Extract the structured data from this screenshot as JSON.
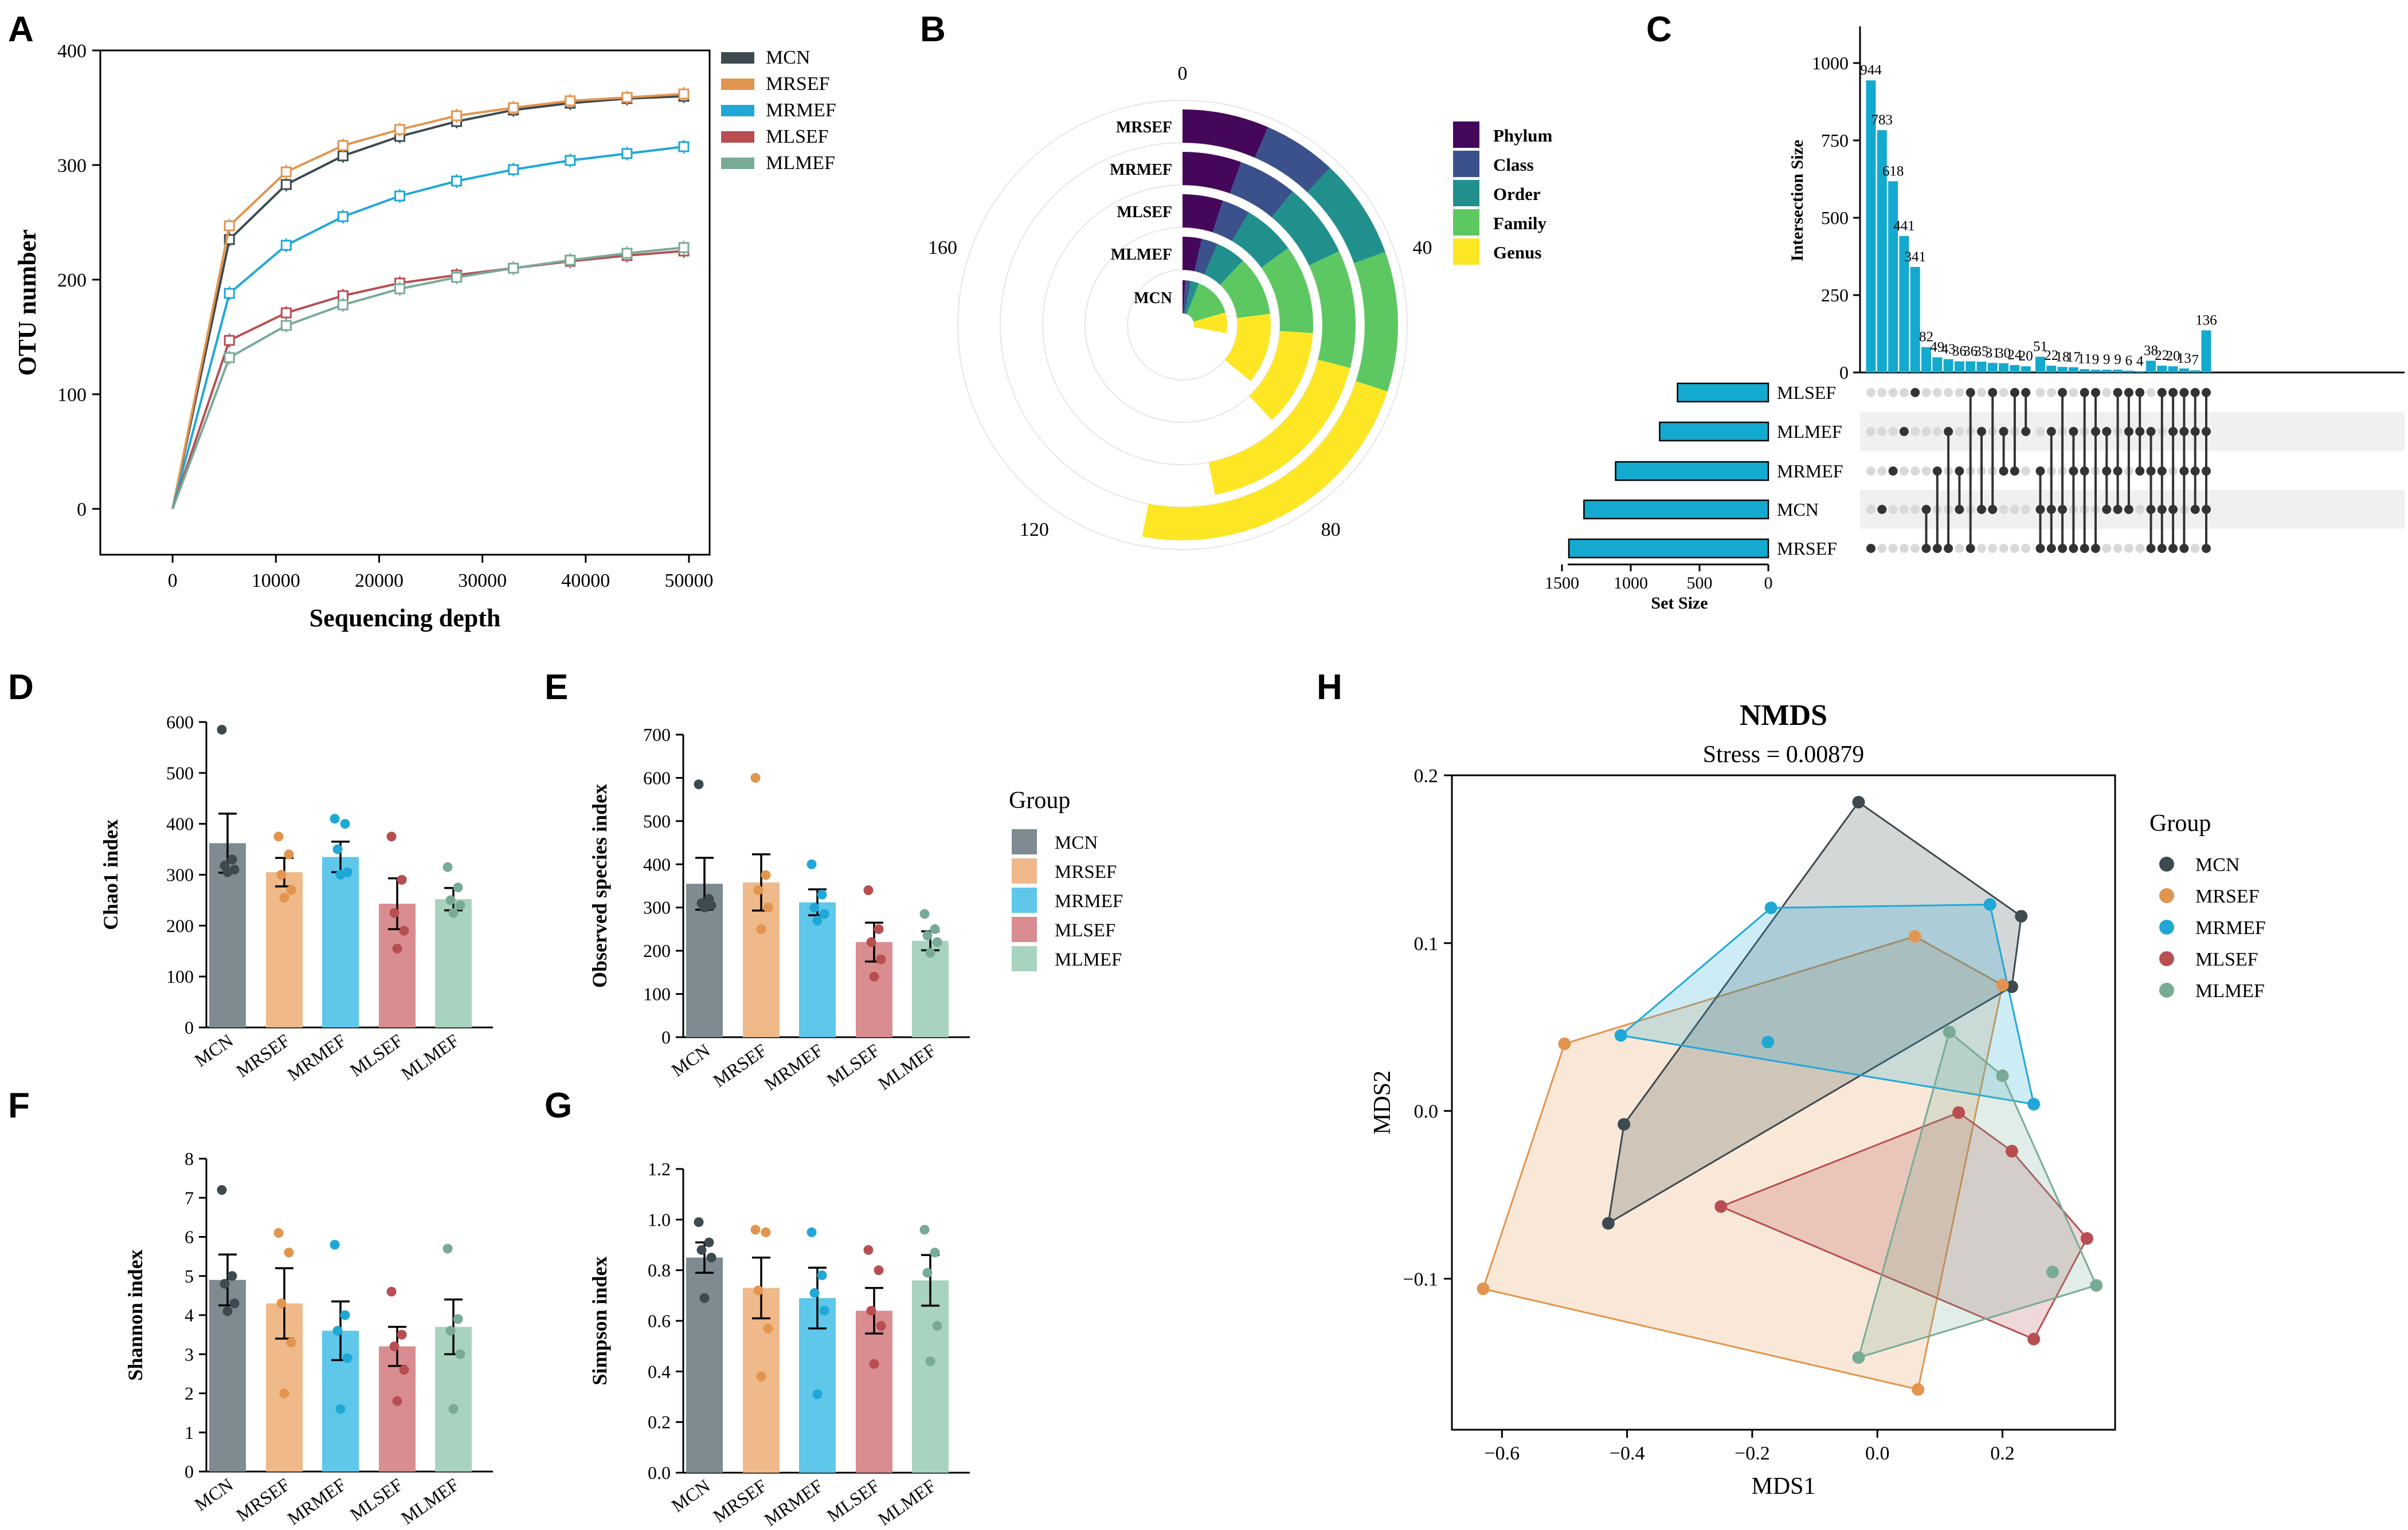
{
  "panel_letters": {
    "A": "A",
    "B": "B",
    "C": "C",
    "D": "D",
    "E": "E",
    "F": "F",
    "G": "G",
    "H": "H"
  },
  "colors": {
    "MCN": "#3d4a4f",
    "MRSEF": "#e2954e",
    "MRMEF": "#1fa8d6",
    "MLSEF": "#b84e52",
    "MLMEF": "#78ab96",
    "bar_MCN": "#7e8b91",
    "bar_MRSEF": "#efb989",
    "bar_MRMEF": "#5ec7ea",
    "bar_MLSEF": "#d98d90",
    "bar_MLMEF": "#a8d3be",
    "upset": "#14a9cf",
    "Phylum": "#44075a",
    "Class": "#3b518b",
    "Order": "#21908d",
    "Family": "#5dc862",
    "Genus": "#fde725"
  },
  "chart_data": [
    {
      "panel": "A",
      "type": "line",
      "xlabel": "Sequencing depth",
      "ylabel": "OTU number",
      "xlim": [
        -7000,
        52000
      ],
      "ylim": [
        -40,
        400
      ],
      "xticks": [
        0,
        10000,
        20000,
        30000,
        40000,
        50000
      ],
      "yticks": [
        0,
        100,
        200,
        300,
        400
      ],
      "x": [
        0,
        5500,
        11000,
        16500,
        22000,
        27500,
        33000,
        38500,
        44000,
        49500
      ],
      "series": [
        {
          "name": "MCN",
          "values": [
            0,
            235,
            283,
            308,
            325,
            338,
            348,
            354,
            358,
            360
          ]
        },
        {
          "name": "MRSEF",
          "values": [
            0,
            247,
            294,
            317,
            331,
            343,
            350,
            356,
            359,
            362
          ]
        },
        {
          "name": "MRMEF",
          "values": [
            0,
            188,
            230,
            255,
            273,
            286,
            296,
            304,
            310,
            316
          ]
        },
        {
          "name": "MLSEF",
          "values": [
            0,
            147,
            171,
            186,
            197,
            204,
            210,
            216,
            221,
            225
          ]
        },
        {
          "name": "MLMEF",
          "values": [
            0,
            132,
            160,
            178,
            192,
            202,
            210,
            217,
            223,
            228
          ]
        }
      ]
    },
    {
      "panel": "B",
      "type": "bar",
      "subtype": "radial",
      "angle_ticks": [
        "0",
        "40",
        "80",
        "120",
        "160"
      ],
      "angle_max": 200,
      "rings": [
        "MCN",
        "MLMEF",
        "MLSEF",
        "MRMEF",
        "MRSEF"
      ],
      "levels": [
        "Phylum",
        "Class",
        "Order",
        "Family",
        "Genus"
      ],
      "series": [
        {
          "name": "MCN",
          "values": [
            2,
            6,
            12,
            41,
            56
          ]
        },
        {
          "name": "MLMEF",
          "values": [
            7,
            13,
            24,
            46,
            72
          ]
        },
        {
          "name": "MLSEF",
          "values": [
            10,
            17,
            30,
            52,
            76
          ]
        },
        {
          "name": "MRMEF",
          "values": [
            11,
            22,
            36,
            58,
            94
          ]
        },
        {
          "name": "MRSEF",
          "values": [
            13,
            24,
            39,
            60,
            106
          ]
        }
      ]
    },
    {
      "panel": "C",
      "type": "bar",
      "subtype": "upset",
      "ylabel": "Intersection Size",
      "yticks": [
        0,
        250,
        500,
        750,
        1000
      ],
      "ylim": [
        0,
        1100
      ],
      "sets": [
        "MLSEF",
        "MLMEF",
        "MRMEF",
        "MCN",
        "MRSEF"
      ],
      "set_sizes": [
        660,
        790,
        1110,
        1340,
        1450
      ],
      "set_size_label": "Set Size",
      "set_size_ticks": [
        "1500",
        "1000",
        "500",
        "0"
      ],
      "intersection_sizes": [
        944,
        783,
        618,
        441,
        341,
        82,
        49,
        43,
        36,
        36,
        35,
        31,
        30,
        24,
        20,
        51,
        22,
        18,
        17,
        11,
        9,
        9,
        9,
        6,
        4,
        38,
        22,
        20,
        13,
        7,
        136
      ],
      "intersection_labels": [
        "944",
        "783",
        "618",
        "441",
        "341",
        "82",
        "49",
        "43",
        "36",
        "36",
        "35",
        "31",
        "30",
        "24",
        "20",
        "51",
        "22",
        "18",
        "17",
        "11",
        "9",
        "9",
        "9",
        "6",
        "4",
        "38",
        "22",
        "20",
        "13",
        "7",
        "136"
      ],
      "membership": [
        [
          4
        ],
        [
          3
        ],
        [
          2
        ],
        [
          1
        ],
        [
          0
        ],
        [
          3,
          4
        ],
        [
          2,
          4
        ],
        [
          1,
          4
        ],
        [
          2,
          3
        ],
        [
          0,
          4
        ],
        [
          1,
          3
        ],
        [
          0,
          3
        ],
        [
          1,
          2
        ],
        [
          0,
          2
        ],
        [
          0,
          1
        ],
        [
          2,
          3,
          4
        ],
        [
          1,
          3,
          4
        ],
        [
          0,
          3,
          4
        ],
        [
          1,
          2,
          4
        ],
        [
          0,
          2,
          4
        ],
        [
          0,
          1,
          4
        ],
        [
          1,
          2,
          3
        ],
        [
          0,
          2,
          3
        ],
        [
          0,
          1,
          3
        ],
        [
          0,
          1,
          2
        ],
        [
          1,
          2,
          3,
          4
        ],
        [
          0,
          2,
          3,
          4
        ],
        [
          0,
          1,
          3,
          4
        ],
        [
          0,
          1,
          2,
          4
        ],
        [
          0,
          1,
          2,
          3
        ],
        [
          0,
          1,
          2,
          3,
          4
        ]
      ]
    },
    {
      "panel": "D",
      "type": "bar",
      "ylabel": "Chao1 index",
      "categories": [
        "MCN",
        "MRSEF",
        "MRMEF",
        "MLSEF",
        "MLMEF"
      ],
      "values": [
        362,
        305,
        335,
        243,
        252
      ],
      "errors": [
        58,
        28,
        30,
        50,
        22
      ],
      "points": [
        [
          585,
          330,
          318,
          310,
          305
        ],
        [
          375,
          340,
          300,
          270,
          255
        ],
        [
          410,
          400,
          350,
          305,
          300
        ],
        [
          375,
          290,
          225,
          190,
          155
        ],
        [
          315,
          275,
          250,
          240,
          225
        ]
      ],
      "ylim": [
        0,
        600
      ],
      "yticks": [
        0,
        100,
        200,
        300,
        400,
        500,
        600
      ]
    },
    {
      "panel": "E",
      "type": "bar",
      "ylabel": "Observed species index",
      "categories": [
        "MCN",
        "MRSEF",
        "MRMEF",
        "MLSEF",
        "MLMEF"
      ],
      "values": [
        355,
        358,
        312,
        220,
        223
      ],
      "errors": [
        60,
        65,
        30,
        45,
        22
      ],
      "points": [
        [
          585,
          320,
          310,
          305,
          300
        ],
        [
          600,
          375,
          340,
          300,
          250
        ],
        [
          400,
          330,
          300,
          285,
          270
        ],
        [
          340,
          250,
          220,
          180,
          140
        ],
        [
          285,
          250,
          235,
          220,
          195
        ]
      ],
      "ylim": [
        0,
        700
      ],
      "yticks": [
        0,
        100,
        200,
        300,
        400,
        500,
        600,
        700
      ]
    },
    {
      "panel": "F",
      "type": "bar",
      "ylabel": "Shannon index",
      "categories": [
        "MCN",
        "MRSEF",
        "MRMEF",
        "MLSEF",
        "MLMEF"
      ],
      "values": [
        4.9,
        4.3,
        3.6,
        3.2,
        3.7
      ],
      "errors": [
        0.65,
        0.9,
        0.75,
        0.5,
        0.7
      ],
      "points": [
        [
          7.2,
          5.0,
          4.8,
          4.3,
          4.1
        ],
        [
          6.1,
          5.6,
          4.3,
          3.3,
          2.0
        ],
        [
          5.8,
          4.0,
          3.6,
          2.9,
          1.6
        ],
        [
          4.6,
          3.5,
          3.2,
          2.6,
          1.8
        ],
        [
          5.7,
          3.9,
          3.6,
          3.0,
          1.6
        ]
      ],
      "ylim": [
        0,
        8
      ],
      "yticks": [
        0,
        1,
        2,
        3,
        4,
        5,
        6,
        7,
        8
      ]
    },
    {
      "panel": "G",
      "type": "bar",
      "ylabel": "Simpson index",
      "categories": [
        "MCN",
        "MRSEF",
        "MRMEF",
        "MLSEF",
        "MLMEF"
      ],
      "values": [
        0.85,
        0.73,
        0.69,
        0.64,
        0.76
      ],
      "errors": [
        0.06,
        0.12,
        0.12,
        0.09,
        0.1
      ],
      "points": [
        [
          0.99,
          0.91,
          0.88,
          0.85,
          0.69
        ],
        [
          0.96,
          0.95,
          0.72,
          0.57,
          0.38
        ],
        [
          0.95,
          0.78,
          0.71,
          0.64,
          0.31
        ],
        [
          0.88,
          0.8,
          0.64,
          0.58,
          0.43
        ],
        [
          0.96,
          0.87,
          0.79,
          0.58,
          0.44
        ]
      ],
      "ylim": [
        0,
        1.2
      ],
      "yticks": [
        0.0,
        0.2,
        0.4,
        0.6,
        0.8,
        1.0,
        1.2
      ]
    },
    {
      "panel": "H",
      "type": "scatter",
      "title": "NMDS",
      "subtitle": "Stress = 0.00879",
      "xlabel": "MDS1",
      "ylabel": "MDS2",
      "xlim": [
        -0.68,
        0.38
      ],
      "ylim": [
        -0.19,
        0.2
      ],
      "xticks": [
        -0.6,
        -0.4,
        -0.2,
        0.0,
        0.2
      ],
      "yticks": [
        -0.1,
        0.0,
        0.1,
        0.2
      ],
      "xtick_labels": [
        "−0.6",
        "−0.4",
        "−0.2",
        "0.0",
        "0.2"
      ],
      "ytick_labels": [
        "−0.1",
        "0.0",
        "0.1",
        "0.2"
      ],
      "series": [
        {
          "name": "MCN",
          "points": [
            [
              -0.03,
              0.184
            ],
            [
              0.23,
              0.116
            ],
            [
              0.215,
              0.074
            ],
            [
              -0.405,
              -0.008
            ],
            [
              -0.43,
              -0.067
            ]
          ]
        },
        {
          "name": "MRSEF",
          "points": [
            [
              0.06,
              0.104
            ],
            [
              0.2,
              0.075
            ],
            [
              -0.5,
              0.04
            ],
            [
              -0.63,
              -0.106
            ],
            [
              0.065,
              -0.166
            ]
          ]
        },
        {
          "name": "MRMEF",
          "points": [
            [
              -0.17,
              0.121
            ],
            [
              0.18,
              0.123
            ],
            [
              -0.41,
              0.045
            ],
            [
              -0.175,
              0.041
            ],
            [
              0.25,
              0.004
            ]
          ]
        },
        {
          "name": "MLSEF",
          "points": [
            [
              0.13,
              -0.001
            ],
            [
              0.215,
              -0.024
            ],
            [
              -0.25,
              -0.057
            ],
            [
              0.335,
              -0.076
            ],
            [
              0.25,
              -0.136
            ]
          ]
        },
        {
          "name": "MLMEF",
          "points": [
            [
              0.115,
              0.047
            ],
            [
              0.2,
              0.021
            ],
            [
              0.28,
              -0.096
            ],
            [
              0.35,
              -0.104
            ],
            [
              -0.03,
              -0.147
            ]
          ]
        }
      ]
    }
  ],
  "legend_top": {
    "entries": [
      "MCN",
      "MRSEF",
      "MRMEF",
      "MLSEF",
      "MLMEF"
    ]
  },
  "legend_group_mid": {
    "title": "Group",
    "entries": [
      "MCN",
      "MRSEF",
      "MRMEF",
      "MLSEF",
      "MLMEF"
    ]
  },
  "legend_group_h": {
    "title": "Group",
    "entries": [
      "MCN",
      "MRSEF",
      "MRMEF",
      "MLSEF",
      "MLMEF"
    ]
  },
  "legend_b": {
    "entries": [
      "Phylum",
      "Class",
      "Order",
      "Family",
      "Genus"
    ]
  }
}
